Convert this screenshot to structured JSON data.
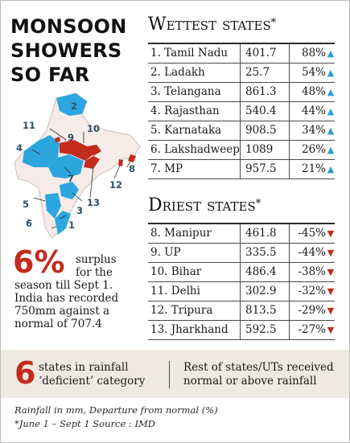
{
  "headline": [
    "MONSOON",
    "SHOWERS",
    "SO FAR"
  ],
  "wettest": {
    "title": "Wettest states",
    "marker": "*",
    "rows": [
      {
        "name": "1. Tamil Nadu",
        "value": "401.7",
        "departure": "88%",
        "direction": "up"
      },
      {
        "name": "2. Ladakh",
        "value": "25.7",
        "departure": "54%",
        "direction": "up"
      },
      {
        "name": "3. Telangana",
        "value": "861.3",
        "departure": "48%",
        "direction": "up"
      },
      {
        "name": "4. Rajasthan",
        "value": "540.4",
        "departure": "44%",
        "direction": "up"
      },
      {
        "name": "5. Karnataka",
        "value": "908.5",
        "departure": "34%",
        "direction": "up"
      },
      {
        "name": "6. Lakshadweep",
        "value": "1089",
        "departure": "26%",
        "direction": "up"
      },
      {
        "name": "7. MP",
        "value": "957.5",
        "departure": "21%",
        "direction": "up"
      }
    ]
  },
  "driest": {
    "title": "Driest states",
    "marker": "*",
    "rows": [
      {
        "name": "8. Manipur",
        "value": "461.8",
        "departure": "-45%",
        "direction": "down"
      },
      {
        "name": "9. UP",
        "value": "335.5",
        "departure": "-44%",
        "direction": "down"
      },
      {
        "name": "10. Bihar",
        "value": "486.4",
        "departure": "-38%",
        "direction": "down"
      },
      {
        "name": "11. Delhi",
        "value": "302.9",
        "departure": "-32%",
        "direction": "down"
      },
      {
        "name": "12. Tripura",
        "value": "813.5",
        "departure": "-29%",
        "direction": "down"
      },
      {
        "name": "13. Jharkhand",
        "value": "592.5",
        "departure": "-27%",
        "direction": "down"
      }
    ]
  },
  "map": {
    "labels": [
      "1",
      "2",
      "3",
      "4",
      "5",
      "6",
      "7",
      "8",
      "9",
      "10",
      "11",
      "12",
      "13"
    ],
    "colors": {
      "wet": "#2ba6df",
      "dry": "#c42b1c",
      "other": "#f6ebe9",
      "outline": "#c9bfbd"
    }
  },
  "surplus": {
    "big": "6%",
    "lines": [
      "surplus",
      "for the",
      "season till Sept 1.",
      "India has recorded",
      "750mm against a",
      "normal of 707.4"
    ]
  },
  "deficient": {
    "big": "6",
    "text": "states in rainfall ‘deficient’ category"
  },
  "rest": {
    "text": "Rest of states/UTs received normal or above rainfall"
  },
  "footnotes": [
    "Rainfall in mm, Departure from normal (%)",
    "*June 1 – Sept 1  Source : IMD"
  ],
  "arrows": {
    "up": "▲",
    "down": "▼"
  }
}
